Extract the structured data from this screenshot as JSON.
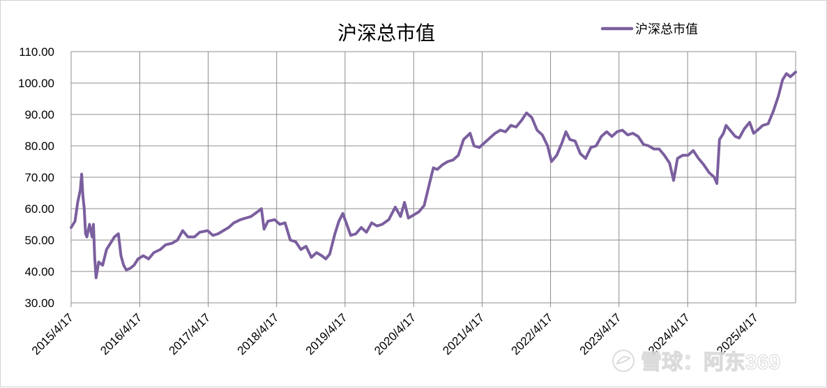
{
  "chart_data": {
    "type": "line",
    "title": "沪深总市值",
    "xlabel": "",
    "ylabel": "",
    "ylim": [
      30,
      110
    ],
    "ytick_step": 10,
    "y_tick_labels": [
      "30.00",
      "40.00",
      "50.00",
      "60.00",
      "70.00",
      "80.00",
      "90.00",
      "100.00",
      "110.00"
    ],
    "x_start": "2015/4/17",
    "x_end": "2025/11/14",
    "x_tick_labels": [
      "2015/4/17",
      "2016/4/17",
      "2017/4/17",
      "2018/4/17",
      "2019/4/17",
      "2020/4/17",
      "2021/4/17",
      "2022/4/17",
      "2023/4/17",
      "2024/4/17",
      "2025/4/17"
    ],
    "grid": true,
    "legend": {
      "position": "top-right"
    },
    "series": [
      {
        "name": "沪深总市值",
        "color": "#7b5f9e",
        "points": [
          [
            "2015/4/17",
            54
          ],
          [
            "2015/5/8",
            56
          ],
          [
            "2015/5/22",
            62
          ],
          [
            "2015/6/5",
            66
          ],
          [
            "2015/6/12",
            71
          ],
          [
            "2015/6/19",
            64
          ],
          [
            "2015/6/26",
            60
          ],
          [
            "2015/7/3",
            52
          ],
          [
            "2015/7/10",
            51
          ],
          [
            "2015/7/24",
            55
          ],
          [
            "2015/8/7",
            51
          ],
          [
            "2015/8/14",
            55
          ],
          [
            "2015/8/21",
            44
          ],
          [
            "2015/8/28",
            38
          ],
          [
            "2015/9/11",
            43
          ],
          [
            "2015/10/2",
            42
          ],
          [
            "2015/10/23",
            47
          ],
          [
            "2015/11/13",
            49
          ],
          [
            "2015/12/4",
            51
          ],
          [
            "2015/12/25",
            52
          ],
          [
            "2016/1/8",
            45
          ],
          [
            "2016/1/22",
            42
          ],
          [
            "2016/2/5",
            40.5
          ],
          [
            "2016/2/26",
            41
          ],
          [
            "2016/3/18",
            42
          ],
          [
            "2016/4/8",
            44
          ],
          [
            "2016/5/6",
            45
          ],
          [
            "2016/6/3",
            44
          ],
          [
            "2016/7/1",
            46
          ],
          [
            "2016/8/5",
            47
          ],
          [
            "2016/9/2",
            48.5
          ],
          [
            "2016/10/7",
            49
          ],
          [
            "2016/11/4",
            50
          ],
          [
            "2016/12/2",
            53
          ],
          [
            "2016/12/30",
            51
          ],
          [
            "2017/2/3",
            51
          ],
          [
            "2017/3/3",
            52.5
          ],
          [
            "2017/4/14",
            53
          ],
          [
            "2017/5/12",
            51.5
          ],
          [
            "2017/6/9",
            52
          ],
          [
            "2017/7/7",
            53
          ],
          [
            "2017/8/4",
            54
          ],
          [
            "2017/9/1",
            55.5
          ],
          [
            "2017/10/6",
            56.5
          ],
          [
            "2017/11/3",
            57
          ],
          [
            "2017/12/1",
            57.5
          ],
          [
            "2018/1/5",
            59
          ],
          [
            "2018/1/26",
            60
          ],
          [
            "2018/2/9",
            53.5
          ],
          [
            "2018/3/2",
            56
          ],
          [
            "2018/4/6",
            56.5
          ],
          [
            "2018/5/4",
            55
          ],
          [
            "2018/6/1",
            55.5
          ],
          [
            "2018/6/29",
            50
          ],
          [
            "2018/7/27",
            49.5
          ],
          [
            "2018/8/24",
            47
          ],
          [
            "2018/9/21",
            48
          ],
          [
            "2018/10/19",
            44.5
          ],
          [
            "2018/11/16",
            46
          ],
          [
            "2018/12/14",
            45
          ],
          [
            "2019/1/4",
            44
          ],
          [
            "2019/1/25",
            45.5
          ],
          [
            "2019/2/22",
            52
          ],
          [
            "2019/3/15",
            56
          ],
          [
            "2019/4/5",
            58.5
          ],
          [
            "2019/4/26",
            55
          ],
          [
            "2019/5/17",
            51.5
          ],
          [
            "2019/6/14",
            52
          ],
          [
            "2019/7/12",
            54
          ],
          [
            "2019/8/9",
            52.5
          ],
          [
            "2019/9/6",
            55.5
          ],
          [
            "2019/10/4",
            54.5
          ],
          [
            "2019/11/1",
            55
          ],
          [
            "2019/12/6",
            56.5
          ],
          [
            "2020/1/10",
            60.5
          ],
          [
            "2020/2/7",
            57.5
          ],
          [
            "2020/2/28",
            62
          ],
          [
            "2020/3/20",
            57
          ],
          [
            "2020/4/17",
            58
          ],
          [
            "2020/5/15",
            59
          ],
          [
            "2020/6/12",
            61
          ],
          [
            "2020/7/10",
            68
          ],
          [
            "2020/7/31",
            73
          ],
          [
            "2020/8/21",
            72.5
          ],
          [
            "2020/9/18",
            74
          ],
          [
            "2020/10/16",
            75
          ],
          [
            "2020/11/13",
            75.5
          ],
          [
            "2020/12/11",
            77
          ],
          [
            "2021/1/8",
            82
          ],
          [
            "2021/2/12",
            84
          ],
          [
            "2021/3/5",
            80
          ],
          [
            "2021/4/2",
            79.5
          ],
          [
            "2021/4/30",
            81
          ],
          [
            "2021/5/28",
            82.5
          ],
          [
            "2021/6/25",
            84
          ],
          [
            "2021/7/23",
            85
          ],
          [
            "2021/8/20",
            84.5
          ],
          [
            "2021/9/17",
            86.5
          ],
          [
            "2021/10/15",
            86
          ],
          [
            "2021/11/12",
            88
          ],
          [
            "2021/12/10",
            90.5
          ],
          [
            "2022/1/7",
            89
          ],
          [
            "2022/2/4",
            85
          ],
          [
            "2022/3/4",
            83.5
          ],
          [
            "2022/4/1",
            80
          ],
          [
            "2022/4/22",
            75
          ],
          [
            "2022/5/20",
            77
          ],
          [
            "2022/6/17",
            81
          ],
          [
            "2022/7/8",
            84.5
          ],
          [
            "2022/7/29",
            82
          ],
          [
            "2022/8/26",
            81.5
          ],
          [
            "2022/9/23",
            77.5
          ],
          [
            "2022/10/21",
            76
          ],
          [
            "2022/11/18",
            79.5
          ],
          [
            "2022/12/16",
            80
          ],
          [
            "2023/1/13",
            83
          ],
          [
            "2023/2/10",
            84.5
          ],
          [
            "2023/3/10",
            83
          ],
          [
            "2023/4/7",
            84.5
          ],
          [
            "2023/5/5",
            85
          ],
          [
            "2023/6/2",
            83.5
          ],
          [
            "2023/6/30",
            84
          ],
          [
            "2023/7/28",
            83
          ],
          [
            "2023/8/25",
            80.5
          ],
          [
            "2023/9/22",
            80
          ],
          [
            "2023/10/20",
            79
          ],
          [
            "2023/11/17",
            79
          ],
          [
            "2023/12/15",
            77
          ],
          [
            "2024/1/12",
            74.5
          ],
          [
            "2024/2/2",
            69
          ],
          [
            "2024/2/23",
            76
          ],
          [
            "2024/3/22",
            77
          ],
          [
            "2024/4/19",
            77
          ],
          [
            "2024/5/17",
            78.5
          ],
          [
            "2024/6/14",
            76
          ],
          [
            "2024/7/12",
            74
          ],
          [
            "2024/8/9",
            71.5
          ],
          [
            "2024/9/6",
            70
          ],
          [
            "2024/9/20",
            68
          ],
          [
            "2024/10/4",
            82
          ],
          [
            "2024/10/25",
            84
          ],
          [
            "2024/11/8",
            86.5
          ],
          [
            "2024/11/29",
            85
          ],
          [
            "2024/12/27",
            83
          ],
          [
            "2025/1/17",
            82.5
          ],
          [
            "2025/2/14",
            85.5
          ],
          [
            "2025/3/14",
            87.5
          ],
          [
            "2025/4/4",
            84
          ],
          [
            "2025/4/25",
            85
          ],
          [
            "2025/5/23",
            86.5
          ],
          [
            "2025/6/20",
            87
          ],
          [
            "2025/7/18",
            91
          ],
          [
            "2025/8/15",
            96
          ],
          [
            "2025/9/5",
            101
          ],
          [
            "2025/9/26",
            103
          ],
          [
            "2025/10/17",
            102
          ],
          [
            "2025/11/14",
            103.5
          ]
        ]
      }
    ]
  },
  "watermark": {
    "text": "雪球：阿东369",
    "icon": "snowball-icon"
  }
}
